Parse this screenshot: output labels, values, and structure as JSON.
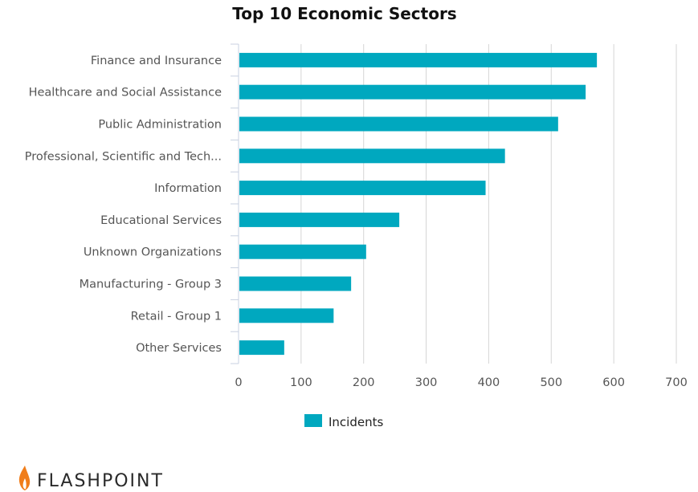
{
  "chart_data": {
    "type": "bar",
    "orientation": "horizontal",
    "title": "Top 10 Economic Sectors",
    "categories": [
      "Finance and Insurance",
      "Healthcare and Social Assistance",
      "Public Administration",
      "Professional, Scientific and Tech...",
      "Information",
      "Educational Services",
      "Unknown Organizations",
      "Manufacturing - Group 3",
      "Retail - Group 1",
      "Other Services"
    ],
    "series": [
      {
        "name": "Incidents",
        "values": [
          573,
          555,
          511,
          426,
          395,
          257,
          204,
          180,
          152,
          73
        ]
      }
    ],
    "xlim": [
      0,
      700
    ],
    "xticks": [
      0,
      100,
      200,
      300,
      400,
      500,
      600,
      700
    ],
    "grid": "vertical",
    "legend": "bottom-center",
    "colors": {
      "bar": "#00a8bf",
      "grid": "#d6d6d6",
      "axis": "#c9d1e0"
    }
  },
  "brand": {
    "name": "FLASHPOINT",
    "logo_icon": "flame-icon",
    "flame_color": "#f07d1a"
  }
}
